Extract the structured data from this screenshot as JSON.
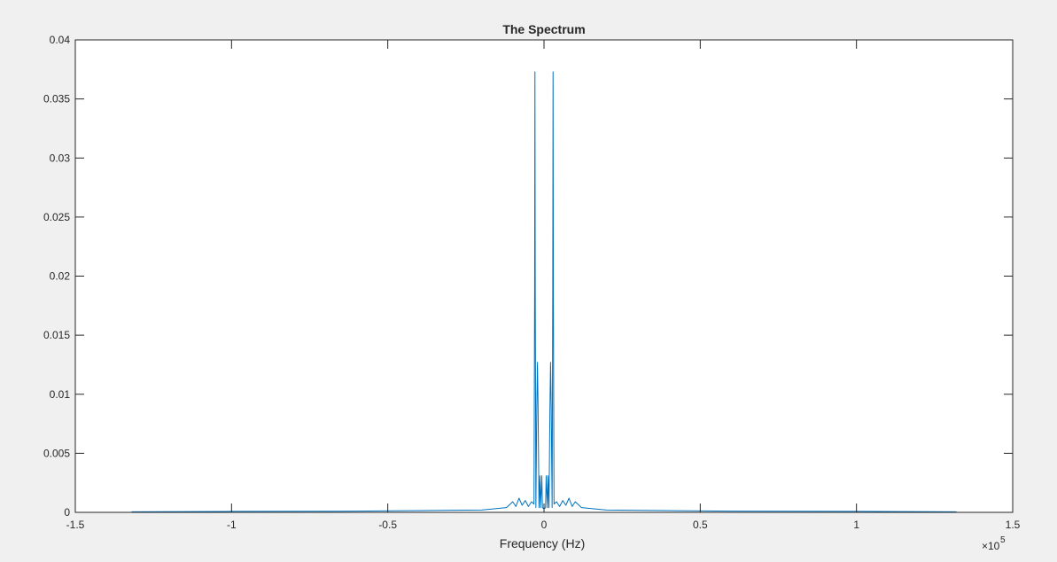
{
  "chart_data": {
    "type": "line",
    "title": "The Spectrum",
    "xlabel": "Frequency (Hz)",
    "ylabel": "",
    "xlim": [
      -150000,
      150000
    ],
    "ylim": [
      0,
      0.04
    ],
    "x_exponent_label": "×10",
    "x_exponent_power": "5",
    "x_ticks": [
      {
        "value": -150000,
        "label": "-1.5"
      },
      {
        "value": -100000,
        "label": "-1"
      },
      {
        "value": -50000,
        "label": "-0.5"
      },
      {
        "value": 0,
        "label": "0"
      },
      {
        "value": 50000,
        "label": "0.5"
      },
      {
        "value": 100000,
        "label": "1"
      },
      {
        "value": 150000,
        "label": "1.5"
      }
    ],
    "y_ticks": [
      {
        "value": 0,
        "label": "0"
      },
      {
        "value": 0.005,
        "label": "0.005"
      },
      {
        "value": 0.01,
        "label": "0.01"
      },
      {
        "value": 0.015,
        "label": "0.015"
      },
      {
        "value": 0.02,
        "label": "0.02"
      },
      {
        "value": 0.025,
        "label": "0.025"
      },
      {
        "value": 0.03,
        "label": "0.03"
      },
      {
        "value": 0.035,
        "label": "0.035"
      },
      {
        "value": 0.04,
        "label": "0.04"
      }
    ],
    "grid": false,
    "series": [
      {
        "color": "#0072bd",
        "points": [
          [
            -132000,
            5e-05
          ],
          [
            -100000,
            8e-05
          ],
          [
            -60000,
            0.0001
          ],
          [
            -40000,
            0.00015
          ],
          [
            -20000,
            0.0002
          ],
          [
            -12000,
            0.0004
          ],
          [
            -10000,
            0.0009
          ],
          [
            -9000,
            0.0005
          ],
          [
            -8000,
            0.0012
          ],
          [
            -7000,
            0.0006
          ],
          [
            -6000,
            0.001
          ],
          [
            -5000,
            0.0005
          ],
          [
            -4000,
            0.0009
          ],
          [
            -3200,
            0.0007
          ],
          [
            -3000,
            0.0187
          ],
          [
            -2900,
            0.0373
          ],
          [
            -2800,
            0.0188
          ],
          [
            -2600,
            0.0004
          ],
          [
            -2300,
            0.009
          ],
          [
            -2100,
            0.0127
          ],
          [
            -1900,
            0.0089
          ],
          [
            -1600,
            0.0004
          ],
          [
            -1300,
            0.0031
          ],
          [
            -1100,
            0.0004
          ],
          [
            -700,
            0.0031
          ],
          [
            -500,
            0.0004
          ],
          [
            0,
            0.0003
          ],
          [
            500,
            0.0004
          ],
          [
            700,
            0.0031
          ],
          [
            1100,
            0.0004
          ],
          [
            1300,
            0.0031
          ],
          [
            1600,
            0.0004
          ],
          [
            1900,
            0.0089
          ],
          [
            2100,
            0.0127
          ],
          [
            2300,
            0.009
          ],
          [
            2600,
            0.0004
          ],
          [
            2800,
            0.0188
          ],
          [
            2900,
            0.0373
          ],
          [
            3000,
            0.0187
          ],
          [
            3200,
            0.0007
          ],
          [
            4000,
            0.0009
          ],
          [
            5000,
            0.0005
          ],
          [
            6000,
            0.001
          ],
          [
            7000,
            0.0006
          ],
          [
            8000,
            0.0012
          ],
          [
            9000,
            0.0005
          ],
          [
            10000,
            0.0009
          ],
          [
            12000,
            0.0004
          ],
          [
            20000,
            0.0002
          ],
          [
            40000,
            0.00015
          ],
          [
            60000,
            0.0001
          ],
          [
            100000,
            8e-05
          ],
          [
            132000,
            5e-05
          ]
        ]
      }
    ]
  }
}
